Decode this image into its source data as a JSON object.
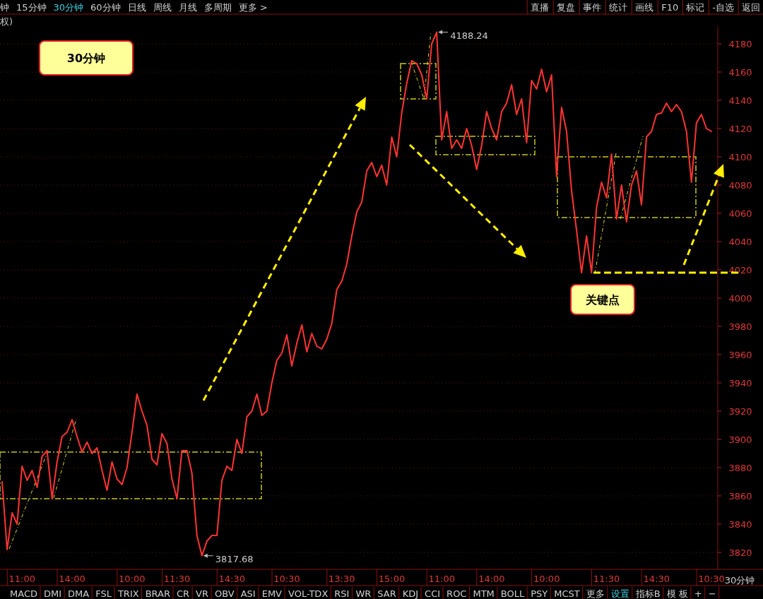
{
  "chart_data": {
    "type": "line",
    "color": "#ff3333",
    "marker": "none",
    "grid": "y",
    "ylim": [
      3808,
      4192
    ],
    "yticks": [
      3820,
      3840,
      3860,
      3880,
      3900,
      3920,
      3940,
      3960,
      3980,
      4000,
      4020,
      4040,
      4060,
      4080,
      4100,
      4120,
      4140,
      4160,
      4180
    ],
    "categories": [
      null,
      null,
      null,
      null,
      "11:00",
      null,
      null,
      null,
      null,
      null,
      null,
      null,
      null,
      null,
      "14:00",
      null,
      null,
      null,
      null,
      null,
      null,
      null,
      null,
      null,
      null,
      null,
      "10:00",
      null,
      null,
      null,
      null,
      null,
      null,
      null,
      null,
      "11:30",
      null,
      null,
      null,
      null,
      null,
      null,
      null,
      null,
      null,
      null,
      "14:30",
      null,
      null,
      null,
      null,
      null,
      null,
      null,
      null,
      null,
      null,
      "10:30",
      null,
      null,
      null,
      null,
      null,
      null,
      null,
      null,
      null,
      null,
      "13:30",
      null,
      null,
      null,
      null,
      null,
      null,
      null,
      null,
      null,
      "15:00",
      null,
      null,
      null,
      null,
      null,
      null,
      null,
      null,
      null,
      "11:00",
      null,
      null,
      null,
      null,
      null,
      null,
      null,
      null,
      null,
      "14:00",
      null,
      null,
      null,
      null,
      null,
      null,
      null,
      null,
      null,
      null,
      "10:00",
      null,
      null,
      null,
      null,
      null,
      null,
      null,
      null,
      null,
      null,
      null,
      "11:30",
      null,
      null,
      null,
      null,
      null,
      null,
      null,
      null,
      null,
      "14:30",
      null,
      null,
      null,
      null,
      null,
      null,
      null,
      null,
      null,
      null,
      "10:30"
    ],
    "values": [
      3870,
      3822,
      3848,
      3840,
      3881,
      3871,
      3878,
      3866,
      3888,
      3892,
      3858,
      3884,
      3902,
      3905,
      3914,
      3902,
      3891,
      3898,
      3890,
      3894,
      3878,
      3864,
      3884,
      3872,
      3868,
      3880,
      3905,
      3932,
      3920,
      3910,
      3886,
      3882,
      3904,
      3897,
      3872,
      3858,
      3892,
      3892,
      3876,
      3832,
      3817.68,
      3828,
      3832,
      3832,
      3871,
      3881,
      3878,
      3900,
      3890,
      3916,
      3920,
      3932,
      3917,
      3920,
      3940,
      3956,
      3961,
      3974,
      3952,
      3968,
      3981,
      3962,
      3975,
      3966,
      3964,
      3971,
      3982,
      4006,
      4012,
      4024,
      4044,
      4061,
      4068,
      4090,
      4096,
      4086,
      4094,
      4080,
      4114,
      4100,
      4131,
      4152,
      4168,
      4166,
      4158,
      4141,
      4180,
      4188.24,
      4112,
      4132,
      4106,
      4112,
      4106,
      4120,
      4108,
      4091,
      4108,
      4132,
      4120,
      4112,
      4132,
      4138,
      4151,
      4130,
      4141,
      4110,
      4154,
      4148,
      4162,
      4146,
      4158,
      4086,
      4135,
      4118,
      4076,
      4048,
      4018,
      4044,
      4018,
      4064,
      4082,
      4071,
      4102,
      4056,
      4080,
      4054,
      4080,
      4090,
      4066,
      4114,
      4118,
      4130,
      4131,
      4138,
      4132,
      4137,
      4132,
      4118,
      4082,
      4124,
      4130,
      4120,
      4118
    ],
    "ref_lines": [
      {
        "axis": "y",
        "value": 4018,
        "color": "#ffee00",
        "line_style": "dashed"
      }
    ],
    "annotations": [
      "30分钟",
      "关键点",
      "4188.24",
      "3817.68",
      "钟",
      "15分钟",
      "30分钟",
      "60分钟",
      "日线",
      "周线",
      "月线",
      "多周期",
      "更多 >",
      "权)",
      "直播",
      "复盘",
      "事件",
      "统计",
      "画线",
      "F10",
      "标记",
      "-自选",
      "返回",
      "MACD",
      "DMI",
      "DMA",
      "FSL",
      "TRIX",
      "BRAR",
      "CR",
      "VR",
      "OBV",
      "ASI",
      "EMV",
      "VOL-TDX",
      "RSI",
      "WR",
      "SAR",
      "KDJ",
      "CCI",
      "ROC",
      "MTM",
      "BOLL",
      "PSY",
      "MCST",
      "更多",
      "设置",
      "指标B",
      "模 板",
      "+",
      "−",
      "30分钟"
    ]
  }
}
